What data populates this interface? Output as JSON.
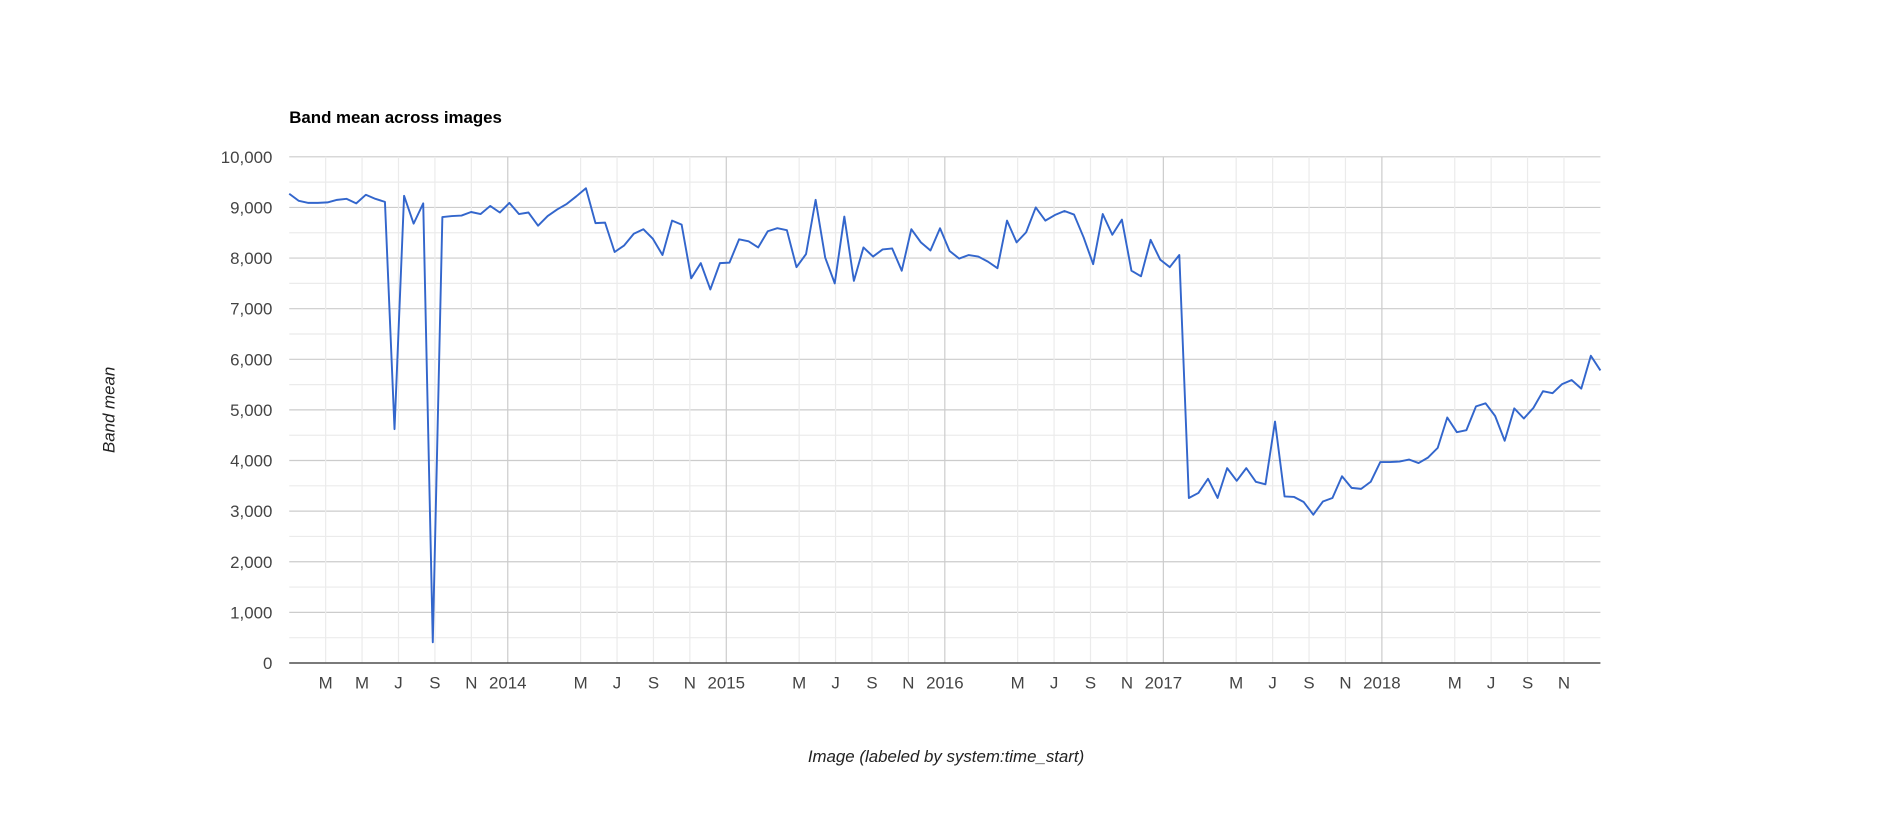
{
  "chart_data": {
    "type": "line",
    "title": "Band mean across images",
    "y_label": "Band mean",
    "x_label": "Image (labeled by system:time_start)",
    "xlim": [
      "2013-01",
      "2019-01"
    ],
    "xticks": [
      {
        "value": "2013-03",
        "label": "M"
      },
      {
        "value": "2013-05",
        "label": "M"
      },
      {
        "value": "2013-07",
        "label": "J"
      },
      {
        "value": "2013-09",
        "label": "S"
      },
      {
        "value": "2013-11",
        "label": "N"
      },
      {
        "value": "2014-01",
        "label": "2014"
      },
      {
        "value": "2014-05",
        "label": "M"
      },
      {
        "value": "2014-07",
        "label": "J"
      },
      {
        "value": "2014-09",
        "label": "S"
      },
      {
        "value": "2014-11",
        "label": "N"
      },
      {
        "value": "2015-01",
        "label": "2015"
      },
      {
        "value": "2015-05",
        "label": "M"
      },
      {
        "value": "2015-07",
        "label": "J"
      },
      {
        "value": "2015-09",
        "label": "S"
      },
      {
        "value": "2015-11",
        "label": "N"
      },
      {
        "value": "2016-01",
        "label": "2016"
      },
      {
        "value": "2016-05",
        "label": "M"
      },
      {
        "value": "2016-07",
        "label": "J"
      },
      {
        "value": "2016-09",
        "label": "S"
      },
      {
        "value": "2016-11",
        "label": "N"
      },
      {
        "value": "2017-01",
        "label": "2017"
      },
      {
        "value": "2017-05",
        "label": "M"
      },
      {
        "value": "2017-07",
        "label": "J"
      },
      {
        "value": "2017-09",
        "label": "S"
      },
      {
        "value": "2017-11",
        "label": "N"
      },
      {
        "value": "2018-01",
        "label": "2018"
      },
      {
        "value": "2018-05",
        "label": "M"
      },
      {
        "value": "2018-07",
        "label": "J"
      },
      {
        "value": "2018-09",
        "label": "S"
      },
      {
        "value": "2018-11",
        "label": "N"
      }
    ],
    "ylim": [
      0,
      10000
    ],
    "yticks": [
      0,
      {
        "value": 1000,
        "label": "1,000"
      },
      {
        "value": 2000,
        "label": "2,000"
      },
      {
        "value": 3000,
        "label": "3,000"
      },
      {
        "value": 4000,
        "label": "4,000"
      },
      {
        "value": 5000,
        "label": "5,000"
      },
      {
        "value": 6000,
        "label": "6,000"
      },
      {
        "value": 7000,
        "label": "7,000"
      },
      {
        "value": 8000,
        "label": "8,000"
      },
      {
        "value": 9000,
        "label": "9,000"
      },
      {
        "value": 10000,
        "label": "10,000"
      }
    ],
    "grid": true,
    "color": "#3366cc",
    "values": [
      9270,
      9130,
      9090,
      9090,
      9100,
      9150,
      9170,
      9080,
      9250,
      9170,
      9110,
      4620,
      9230,
      8680,
      9080,
      410,
      8810,
      8830,
      8840,
      8910,
      8870,
      9030,
      8900,
      9090,
      8870,
      8900,
      8640,
      8830,
      8960,
      9070,
      9220,
      9380,
      8690,
      8700,
      8120,
      8250,
      8480,
      8570,
      8380,
      8060,
      8740,
      8660,
      7600,
      7900,
      7380,
      7900,
      7910,
      8370,
      8330,
      8210,
      8530,
      8590,
      8550,
      7820,
      8080,
      9150,
      8010,
      7500,
      8820,
      7550,
      8210,
      8030,
      8170,
      8190,
      7750,
      8570,
      8310,
      8150,
      8590,
      8140,
      7990,
      8060,
      8030,
      7930,
      7800,
      8740,
      8310,
      8510,
      9000,
      8740,
      8850,
      8930,
      8860,
      8410,
      7880,
      8870,
      8460,
      8760,
      7750,
      7640,
      8360,
      7970,
      7820,
      8060,
      3260,
      3360,
      3640,
      3260,
      3850,
      3600,
      3850,
      3580,
      3530,
      4770,
      3290,
      3280,
      3180,
      2930,
      3190,
      3260,
      3690,
      3460,
      3440,
      3580,
      3970,
      3970,
      3980,
      4020,
      3950,
      4060,
      4250,
      4850,
      4560,
      4600,
      5070,
      5130,
      4880,
      4390,
      5030,
      4830,
      5040,
      5370,
      5330,
      5510,
      5590,
      5420,
      6070,
      5780
    ]
  }
}
